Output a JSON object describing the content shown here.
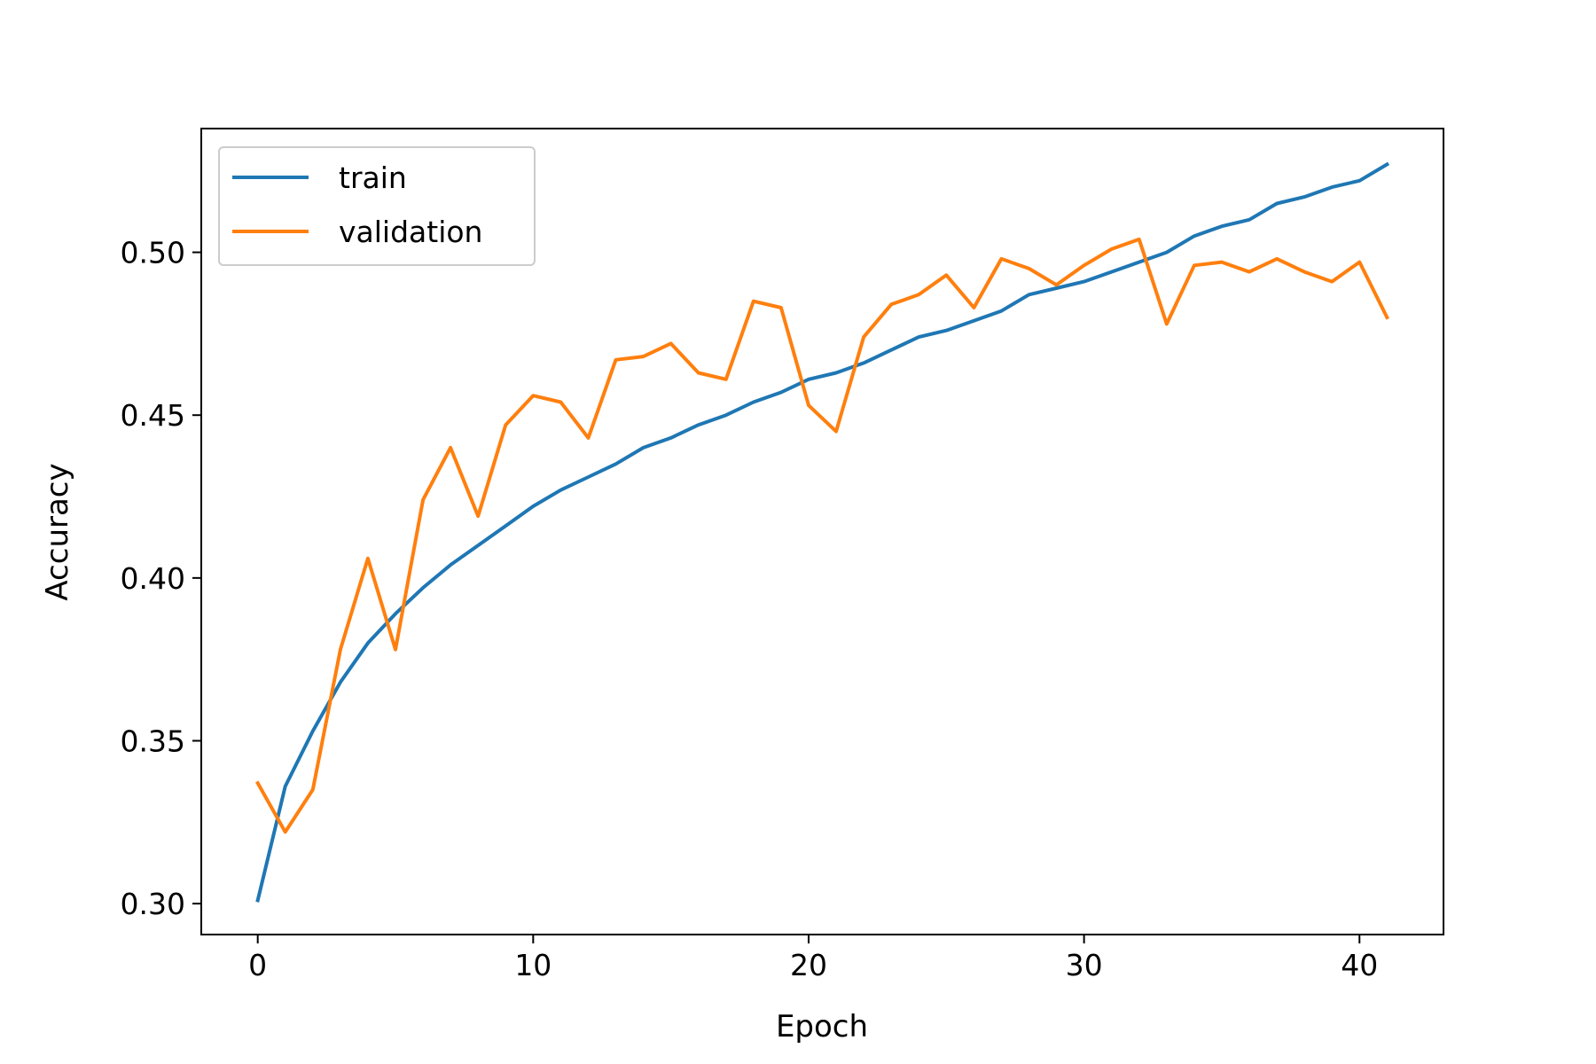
{
  "chart_data": {
    "type": "line",
    "title": "",
    "xlabel": "Epoch",
    "ylabel": "Accuracy",
    "xlim": [
      -2.05,
      43.05
    ],
    "ylim": [
      0.2905,
      0.538
    ],
    "xticks": [
      0,
      10,
      20,
      30,
      40
    ],
    "xtick_labels": [
      "0",
      "10",
      "20",
      "30",
      "40"
    ],
    "yticks": [
      0.3,
      0.35,
      0.4,
      0.45,
      0.5
    ],
    "ytick_labels": [
      "0.30",
      "0.35",
      "0.40",
      "0.45",
      "0.50"
    ],
    "grid": false,
    "legend_position": "upper left",
    "series": [
      {
        "name": "train",
        "color": "#1f77b4",
        "x": [
          0,
          1,
          2,
          3,
          4,
          5,
          6,
          7,
          8,
          9,
          10,
          11,
          12,
          13,
          14,
          15,
          16,
          17,
          18,
          19,
          20,
          21,
          22,
          23,
          24,
          25,
          26,
          27,
          28,
          29,
          30,
          31,
          32,
          33,
          34,
          35,
          36,
          37,
          38,
          39,
          40,
          41
        ],
        "values": [
          0.301,
          0.336,
          0.353,
          0.368,
          0.38,
          0.389,
          0.397,
          0.404,
          0.41,
          0.416,
          0.422,
          0.427,
          0.431,
          0.435,
          0.44,
          0.443,
          0.447,
          0.45,
          0.454,
          0.457,
          0.461,
          0.463,
          0.466,
          0.47,
          0.474,
          0.476,
          0.479,
          0.482,
          0.487,
          0.489,
          0.491,
          0.494,
          0.497,
          0.5,
          0.505,
          0.508,
          0.51,
          0.515,
          0.517,
          0.52,
          0.522,
          0.527
        ]
      },
      {
        "name": "validation",
        "color": "#ff7f0e",
        "x": [
          0,
          1,
          2,
          3,
          4,
          5,
          6,
          7,
          8,
          9,
          10,
          11,
          12,
          13,
          14,
          15,
          16,
          17,
          18,
          19,
          20,
          21,
          22,
          23,
          24,
          25,
          26,
          27,
          28,
          29,
          30,
          31,
          32,
          33,
          34,
          35,
          36,
          37,
          38,
          39,
          40,
          41
        ],
        "values": [
          0.337,
          0.322,
          0.335,
          0.378,
          0.406,
          0.378,
          0.424,
          0.44,
          0.419,
          0.447,
          0.456,
          0.454,
          0.443,
          0.467,
          0.468,
          0.472,
          0.463,
          0.461,
          0.485,
          0.483,
          0.453,
          0.445,
          0.474,
          0.484,
          0.487,
          0.493,
          0.483,
          0.498,
          0.495,
          0.49,
          0.496,
          0.501,
          0.504,
          0.478,
          0.496,
          0.497,
          0.494,
          0.498,
          0.494,
          0.491,
          0.497,
          0.48
        ]
      }
    ]
  }
}
